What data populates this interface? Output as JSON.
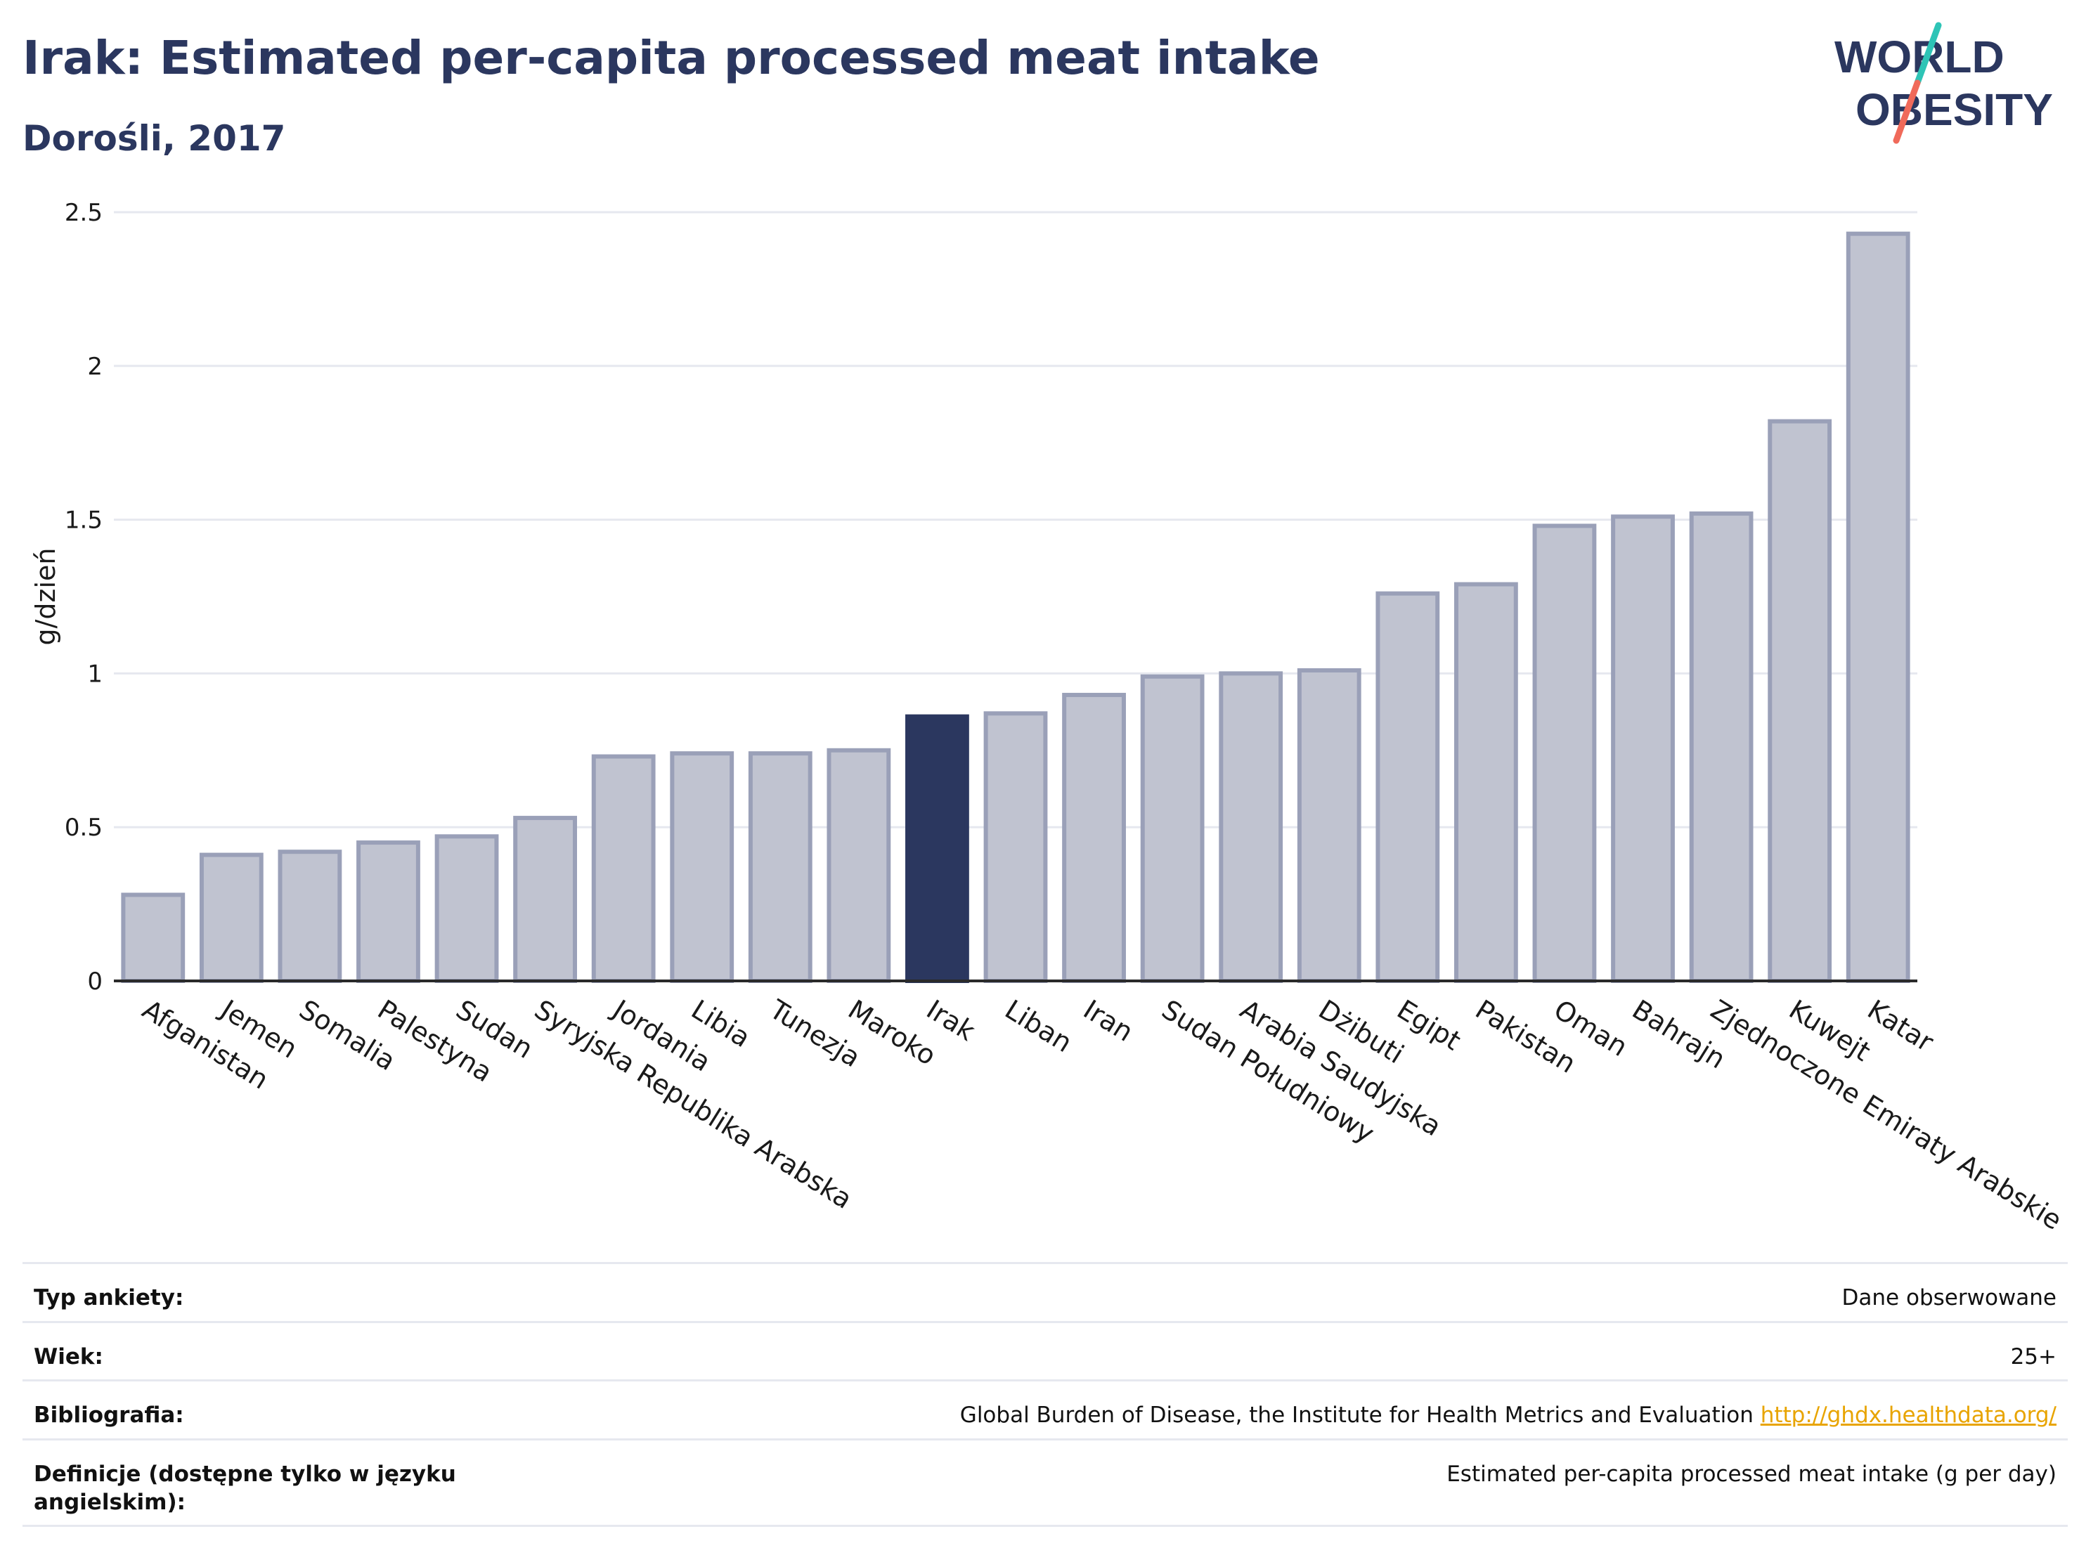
{
  "header": {
    "title": "Irak: Estimated per-capita processed meat intake",
    "subtitle": "Dorośli, 2017"
  },
  "logo": {
    "line1": "WORLD",
    "line2": "OBESITY",
    "colors": {
      "text": "#2b375f",
      "slash_top": "#2ec4b6",
      "slash_bottom": "#f06a5a"
    }
  },
  "chart_data": {
    "type": "bar",
    "title": "Irak: Estimated per-capita processed meat intake",
    "subtitle": "Dorośli, 2017",
    "xlabel": "",
    "ylabel": "g/dzień",
    "ylim": [
      0,
      2.5
    ],
    "yticks": [
      0,
      0.5,
      1,
      1.5,
      2,
      2.5
    ],
    "ytick_labels": [
      "0",
      "0.5",
      "1",
      "1.5",
      "2",
      "2.5"
    ],
    "grid": true,
    "legend": "none",
    "highlight": "Irak",
    "colors": {
      "bar": "#c0c3d0",
      "bar_edge": "#9aa0b8",
      "highlight": "#2b375f",
      "grid": "#e6e8ef"
    },
    "categories": [
      "Afganistan",
      "Jemen",
      "Somalia",
      "Palestyna",
      "Sudan",
      "Syryjska Republika Arabska",
      "Jordania",
      "Libia",
      "Tunezja",
      "Maroko",
      "Irak",
      "Liban",
      "Iran",
      "Sudan Południowy",
      "Arabia Saudyjska",
      "Dżibuti",
      "Egipt",
      "Pakistan",
      "Oman",
      "Bahrajn",
      "Zjednoczone Emiraty Arabskie",
      "Kuwejt",
      "Katar"
    ],
    "values": [
      0.28,
      0.41,
      0.42,
      0.45,
      0.47,
      0.53,
      0.73,
      0.74,
      0.74,
      0.75,
      0.86,
      0.87,
      0.93,
      0.99,
      1.0,
      1.01,
      1.26,
      1.29,
      1.48,
      1.51,
      1.52,
      1.82,
      2.43
    ]
  },
  "info": {
    "rows": [
      {
        "label": "Typ ankiety:",
        "value": "Dane obserwowane"
      },
      {
        "label": "Wiek:",
        "value": "25+"
      },
      {
        "label": "Bibliografia:",
        "value": "Global Burden of Disease, the Institute for Health Metrics and Evaluation",
        "link": "http://ghdx.healthdata.org/"
      },
      {
        "label": "Definicje (dostępne tylko w języku angielskim):",
        "value": "Estimated per-capita processed meat intake (g per day)"
      }
    ]
  }
}
